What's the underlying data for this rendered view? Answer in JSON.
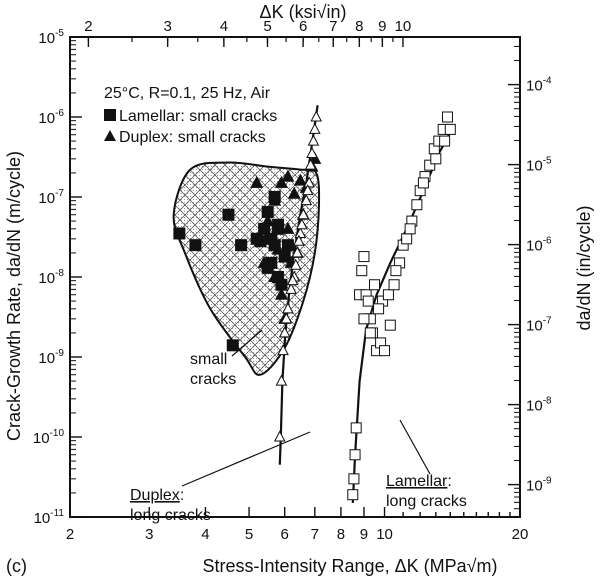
{
  "chart_data": {
    "type": "scatter",
    "panel_label": "(c)",
    "conditions": "25°C, R=0.1, 25 Hz, Air",
    "xlabel": "Stress-Intensity Range, ΔK (MPa√m)",
    "x_top_label": "ΔK (ksi√in)",
    "ylabel": "Crack-Growth Rate, da/dN (m/cycle)",
    "y_right_label": "da/dN (in/cycle)",
    "x_scale": "log",
    "y_scale": "log",
    "xlim": [
      2,
      20
    ],
    "ylim": [
      1e-11,
      1e-05
    ],
    "x_ticks": [
      {
        "v": 2,
        "label": "2"
      },
      {
        "v": 3,
        "label": "3"
      },
      {
        "v": 4,
        "label": "4"
      },
      {
        "v": 5,
        "label": "5"
      },
      {
        "v": 6,
        "label": "6"
      },
      {
        "v": 7,
        "label": "7"
      },
      {
        "v": 8,
        "label": "8"
      },
      {
        "v": 9,
        "label": "9"
      },
      {
        "v": 10,
        "label": "10"
      },
      {
        "v": 20,
        "label": "20"
      }
    ],
    "x_top_ticks": [
      {
        "v": 2,
        "label": "2"
      },
      {
        "v": 3,
        "label": "3"
      },
      {
        "v": 4,
        "label": "4"
      },
      {
        "v": 5,
        "label": "5"
      },
      {
        "v": 6,
        "label": "6"
      },
      {
        "v": 7,
        "label": "7"
      },
      {
        "v": 8,
        "label": "8"
      },
      {
        "v": 9,
        "label": "9"
      },
      {
        "v": 10,
        "label": "10"
      }
    ],
    "y_ticks": [
      {
        "exp": -11,
        "label": "10-11"
      },
      {
        "exp": -10,
        "label": "10-10"
      },
      {
        "exp": -9,
        "label": "10-9"
      },
      {
        "exp": -8,
        "label": "10-8"
      },
      {
        "exp": -7,
        "label": "10-7"
      },
      {
        "exp": -6,
        "label": "10-6"
      },
      {
        "exp": -5,
        "label": "10-5"
      }
    ],
    "y_right_ticks": [
      {
        "exp": -9,
        "label": "10-9"
      },
      {
        "exp": -8,
        "label": "10-8"
      },
      {
        "exp": -7,
        "label": "10-7"
      },
      {
        "exp": -6,
        "label": "10-6"
      },
      {
        "exp": -5,
        "label": "10-5"
      },
      {
        "exp": -4,
        "label": "10-4"
      }
    ],
    "series": [
      {
        "name": "Lamellar: small cracks",
        "marker": "filled-square",
        "points": [
          [
            3.5,
            3.5e-08
          ],
          [
            3.8,
            2.5e-08
          ],
          [
            4.5,
            6e-08
          ],
          [
            4.6,
            1.4e-09
          ],
          [
            4.8,
            2.5e-08
          ],
          [
            5.2,
            3e-08
          ],
          [
            5.3,
            2.8e-08
          ],
          [
            5.5,
            6.5e-08
          ],
          [
            5.4,
            4e-08
          ],
          [
            5.6,
            3e-08
          ],
          [
            5.7,
            1e-07
          ],
          [
            5.8,
            4e-08
          ],
          [
            5.7,
            2.5e-08
          ],
          [
            5.6,
            1.5e-08
          ],
          [
            5.8,
            1e-08
          ],
          [
            5.9,
            8e-09
          ],
          [
            6.0,
            1.8e-08
          ],
          [
            6.1,
            2.5e-08
          ],
          [
            5.8,
            4.5e-08
          ],
          [
            5.5,
            1.3e-08
          ]
        ]
      },
      {
        "name": "Duplex: small cracks",
        "marker": "filled-triangle",
        "points": [
          [
            5.2,
            1.5e-07
          ],
          [
            5.5,
            5e-08
          ],
          [
            5.7,
            9e-08
          ],
          [
            5.9,
            1.5e-07
          ],
          [
            6.1,
            1.8e-07
          ],
          [
            6.3,
            1.1e-07
          ],
          [
            6.5,
            1.6e-07
          ],
          [
            6.7,
            1.3e-07
          ],
          [
            6.6,
            6e-08
          ],
          [
            6.4,
            2e-08
          ],
          [
            6.2,
            1.5e-08
          ],
          [
            6.1,
            4e-08
          ],
          [
            5.9,
            6e-09
          ],
          [
            6.0,
            3e-09
          ],
          [
            5.7,
            1e-08
          ],
          [
            5.4,
            1.5e-08
          ],
          [
            5.8,
            2.2e-08
          ],
          [
            6.9,
            2.4e-07
          ],
          [
            7.0,
            3e-07
          ]
        ]
      },
      {
        "name": "Duplex: long cracks",
        "marker": "open-triangle",
        "points": [
          [
            5.85,
            1e-10
          ],
          [
            5.9,
            5e-10
          ],
          [
            6.0,
            2e-09
          ],
          [
            6.1,
            4e-09
          ],
          [
            6.2,
            7e-09
          ],
          [
            6.3,
            1e-08
          ],
          [
            6.4,
            2e-08
          ],
          [
            6.5,
            3.5e-08
          ],
          [
            6.6,
            6e-08
          ],
          [
            6.7,
            9e-08
          ],
          [
            6.8,
            1.5e-07
          ],
          [
            6.85,
            2.5e-07
          ],
          [
            6.9,
            3.5e-07
          ],
          [
            6.95,
            5e-07
          ],
          [
            7.0,
            7e-07
          ],
          [
            7.05,
            1e-06
          ],
          [
            6.75,
            1.2e-07
          ],
          [
            6.55,
            4.5e-08
          ],
          [
            6.45,
            2.8e-08
          ],
          [
            6.35,
            1.4e-08
          ],
          [
            6.25,
            9e-09
          ],
          [
            6.05,
            3e-09
          ],
          [
            5.95,
            1.2e-09
          ]
        ]
      },
      {
        "name": "Lamellar: long cracks",
        "marker": "open-square",
        "points": [
          [
            8.5,
            1.9e-11
          ],
          [
            8.55,
            3e-11
          ],
          [
            8.6,
            6e-11
          ],
          [
            8.65,
            1.3e-10
          ],
          [
            8.8,
            6e-09
          ],
          [
            8.9,
            1.2e-08
          ],
          [
            9.0,
            1.8e-08
          ],
          [
            9.1,
            6e-09
          ],
          [
            9.2,
            5e-09
          ],
          [
            9.3,
            3e-09
          ],
          [
            9.4,
            2e-09
          ],
          [
            9.0,
            3e-09
          ],
          [
            9.6,
            1.2e-09
          ],
          [
            9.8,
            1.5e-09
          ],
          [
            10.0,
            1.2e-09
          ],
          [
            9.9,
            5e-09
          ],
          [
            10.2,
            6e-09
          ],
          [
            10.5,
            8e-09
          ],
          [
            10.8,
            1.5e-08
          ],
          [
            11.0,
            2.5e-08
          ],
          [
            11.2,
            3e-08
          ],
          [
            11.5,
            5e-08
          ],
          [
            11.8,
            8e-08
          ],
          [
            12.0,
            1.2e-07
          ],
          [
            12.3,
            1.8e-07
          ],
          [
            12.6,
            2.5e-07
          ],
          [
            12.9,
            4e-07
          ],
          [
            13.2,
            5e-07
          ],
          [
            13.5,
            7e-07
          ],
          [
            13.8,
            1e-06
          ],
          [
            14.0,
            7e-07
          ],
          [
            13.6,
            5e-07
          ],
          [
            13.0,
            3e-07
          ],
          [
            12.2,
            1.5e-07
          ],
          [
            11.4,
            4e-08
          ],
          [
            10.6,
            1.2e-08
          ],
          [
            9.5,
            8e-09
          ],
          [
            9.7,
            4e-09
          ],
          [
            10.3,
            2.5e-09
          ],
          [
            9.3,
            2e-09
          ]
        ]
      }
    ],
    "fit_curves": [
      {
        "for": "Duplex: long cracks",
        "points": [
          [
            5.85,
            4.5e-11
          ],
          [
            5.88,
            1e-10
          ],
          [
            5.93,
            5e-10
          ],
          [
            6.02,
            2e-09
          ],
          [
            6.15,
            7e-09
          ],
          [
            6.3,
            2e-08
          ],
          [
            6.5,
            6e-08
          ],
          [
            6.7,
            1.5e-07
          ],
          [
            6.85,
            3.5e-07
          ],
          [
            7.0,
            8e-07
          ],
          [
            7.1,
            1.4e-06
          ]
        ]
      },
      {
        "for": "Lamellar: long cracks",
        "points": [
          [
            8.5,
            1.5e-11
          ],
          [
            8.6,
            6e-11
          ],
          [
            8.8,
            5e-10
          ],
          [
            9.1,
            2.2e-09
          ],
          [
            9.6,
            6e-09
          ],
          [
            10.3,
            1.5e-08
          ],
          [
            11.2,
            4e-08
          ],
          [
            12.2,
            1.2e-07
          ],
          [
            13.2,
            3.5e-07
          ],
          [
            14.3,
            8e-07
          ]
        ]
      }
    ],
    "shaded_region": {
      "label": "small cracks",
      "outline": [
        [
          3.4,
          6e-08
        ],
        [
          3.7,
          2.2e-07
        ],
        [
          4.5,
          2.7e-07
        ],
        [
          5.5,
          2.4e-07
        ],
        [
          6.5,
          2.2e-07
        ],
        [
          7.05,
          2e-07
        ],
        [
          7.15,
          8e-08
        ],
        [
          7.0,
          2e-08
        ],
        [
          6.6,
          5e-09
        ],
        [
          6.0,
          1.3e-09
        ],
        [
          5.3,
          6e-10
        ],
        [
          4.9,
          1e-09
        ],
        [
          4.1,
          4e-09
        ],
        [
          3.6,
          2e-08
        ]
      ]
    },
    "annotations": {
      "small_cracks": [
        "small",
        "cracks"
      ],
      "duplex_long": [
        "Duplex",
        ":",
        "long cracks"
      ],
      "lamellar_long": [
        "Lamellar",
        ":",
        "long cracks"
      ]
    },
    "legend": {
      "position": "top-left"
    }
  }
}
